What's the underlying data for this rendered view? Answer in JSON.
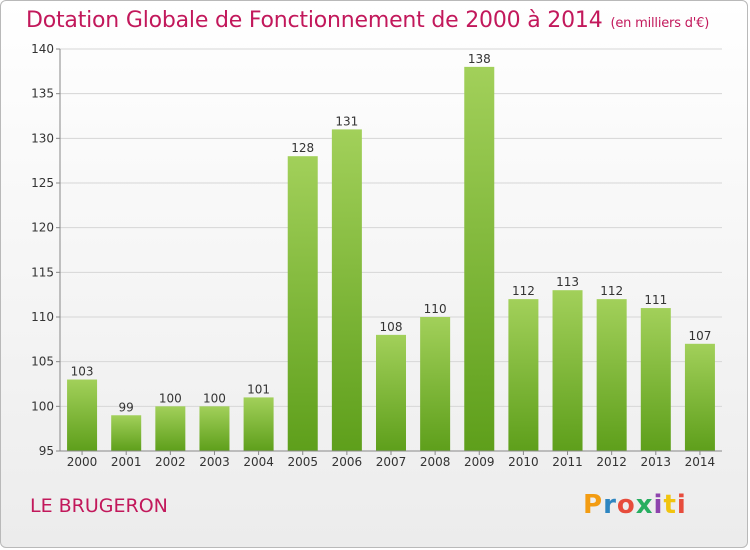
{
  "title": "Dotation Globale de Fonctionnement de 2000 à 2014",
  "unit": "(en milliers d'€)",
  "place": "LE BRUGERON",
  "logo": {
    "text": "Proxiti",
    "letter_colors": [
      "#f39c12",
      "#2e86c1",
      "#e74c3c",
      "#27ae60",
      "#8e44ad",
      "#f1c40f",
      "#e74c3c"
    ]
  },
  "colors": {
    "title": "#c2185b",
    "bar_top": "#a2d05a",
    "bar_bottom": "#5e9f1b",
    "grid": "#d6d6d6"
  },
  "chart_data": {
    "type": "bar",
    "categories": [
      "2000",
      "2001",
      "2002",
      "2003",
      "2004",
      "2005",
      "2006",
      "2007",
      "2008",
      "2009",
      "2010",
      "2011",
      "2012",
      "2013",
      "2014"
    ],
    "values": [
      103,
      99,
      100,
      100,
      101,
      128,
      131,
      108,
      110,
      138,
      112,
      113,
      112,
      111,
      107
    ],
    "ylim": [
      95,
      140
    ],
    "yticks": [
      95,
      100,
      105,
      110,
      115,
      120,
      125,
      130,
      135,
      140
    ],
    "grid": true,
    "data_labels": true
  }
}
